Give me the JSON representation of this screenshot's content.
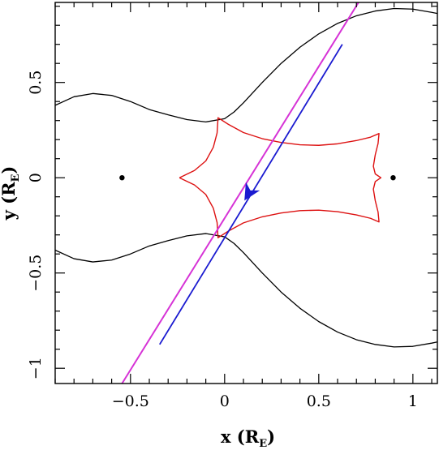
{
  "chart_data": {
    "type": "line",
    "title": "",
    "xlabel": "x (R",
    "xlabel_sub": "E",
    "xlabel_close": ")",
    "ylabel": "y (R",
    "ylabel_sub": "E",
    "ylabel_close": ")",
    "xlim": [
      -0.9,
      1.13
    ],
    "ylim": [
      -1.08,
      0.92
    ],
    "x_ticks": [
      -0.5,
      0,
      0.5,
      1
    ],
    "x_tick_labels": [
      "−0.5",
      "0",
      "0.5",
      "1"
    ],
    "y_ticks": [
      -1,
      -0.5,
      0,
      0.5
    ],
    "y_tick_labels": [
      "−1",
      "−0.5",
      "0",
      "0.5"
    ],
    "grid": false,
    "colors": {
      "critical_curve": "#000000",
      "caustic": "#dd1111",
      "trajectory": "#1a1ad0",
      "trajectory_model": "#d633d6",
      "lens": "#000000"
    },
    "lens_positions": [
      {
        "x": -0.545,
        "y": 0.0
      },
      {
        "x": 0.895,
        "y": 0.0
      }
    ],
    "series": [
      {
        "style": "critical-upper",
        "points": [
          [
            -0.9,
            0.38
          ],
          [
            -0.8,
            0.425
          ],
          [
            -0.7,
            0.442
          ],
          [
            -0.6,
            0.432
          ],
          [
            -0.5,
            0.4
          ],
          [
            -0.4,
            0.358
          ],
          [
            -0.3,
            0.33
          ],
          [
            -0.2,
            0.305
          ],
          [
            -0.1,
            0.293
          ],
          [
            0.0,
            0.31
          ],
          [
            0.05,
            0.345
          ],
          [
            0.1,
            0.393
          ],
          [
            0.2,
            0.5
          ],
          [
            0.3,
            0.6
          ],
          [
            0.4,
            0.685
          ],
          [
            0.5,
            0.755
          ],
          [
            0.6,
            0.81
          ],
          [
            0.7,
            0.85
          ],
          [
            0.8,
            0.875
          ],
          [
            0.9,
            0.888
          ],
          [
            1.0,
            0.885
          ],
          [
            1.1,
            0.868
          ],
          [
            1.13,
            0.862
          ]
        ]
      },
      {
        "style": "critical-lower",
        "points": [
          [
            -0.9,
            -0.38
          ],
          [
            -0.8,
            -0.425
          ],
          [
            -0.7,
            -0.442
          ],
          [
            -0.6,
            -0.432
          ],
          [
            -0.5,
            -0.4
          ],
          [
            -0.4,
            -0.358
          ],
          [
            -0.3,
            -0.33
          ],
          [
            -0.2,
            -0.305
          ],
          [
            -0.1,
            -0.293
          ],
          [
            0.0,
            -0.31
          ],
          [
            0.05,
            -0.345
          ],
          [
            0.1,
            -0.393
          ],
          [
            0.2,
            -0.5
          ],
          [
            0.3,
            -0.6
          ],
          [
            0.4,
            -0.685
          ],
          [
            0.5,
            -0.755
          ],
          [
            0.6,
            -0.81
          ],
          [
            0.7,
            -0.85
          ],
          [
            0.8,
            -0.875
          ],
          [
            0.9,
            -0.888
          ],
          [
            1.0,
            -0.885
          ],
          [
            1.1,
            -0.868
          ],
          [
            1.13,
            -0.862
          ]
        ]
      },
      {
        "style": "caustic",
        "points": [
          [
            -0.24,
            0.0
          ],
          [
            -0.16,
            0.038
          ],
          [
            -0.1,
            0.088
          ],
          [
            -0.06,
            0.16
          ],
          [
            -0.04,
            0.235
          ],
          [
            -0.035,
            0.315
          ],
          [
            0.02,
            0.28
          ],
          [
            0.1,
            0.237
          ],
          [
            0.2,
            0.205
          ],
          [
            0.3,
            0.185
          ],
          [
            0.4,
            0.173
          ],
          [
            0.5,
            0.17
          ],
          [
            0.6,
            0.178
          ],
          [
            0.7,
            0.195
          ],
          [
            0.775,
            0.213
          ],
          [
            0.82,
            0.232
          ],
          [
            0.815,
            0.18
          ],
          [
            0.8,
            0.12
          ],
          [
            0.79,
            0.06
          ],
          [
            0.8,
            0.02
          ],
          [
            0.83,
            0.0
          ],
          [
            0.8,
            -0.02
          ],
          [
            0.79,
            -0.06
          ],
          [
            0.8,
            -0.12
          ],
          [
            0.815,
            -0.18
          ],
          [
            0.82,
            -0.232
          ],
          [
            0.775,
            -0.213
          ],
          [
            0.7,
            -0.195
          ],
          [
            0.6,
            -0.178
          ],
          [
            0.5,
            -0.17
          ],
          [
            0.4,
            -0.173
          ],
          [
            0.3,
            -0.185
          ],
          [
            0.2,
            -0.205
          ],
          [
            0.1,
            -0.237
          ],
          [
            0.02,
            -0.28
          ],
          [
            -0.035,
            -0.315
          ],
          [
            -0.04,
            -0.235
          ],
          [
            -0.06,
            -0.16
          ],
          [
            -0.1,
            -0.088
          ],
          [
            -0.16,
            -0.038
          ],
          [
            -0.24,
            0.0
          ]
        ]
      },
      {
        "style": "trajectory-model",
        "points": [
          [
            -0.545,
            -1.08
          ],
          [
            0.73,
            0.95
          ]
        ]
      },
      {
        "style": "trajectory-observed",
        "points": [
          [
            -0.345,
            -0.875
          ],
          [
            0.625,
            0.7
          ]
        ]
      }
    ],
    "arrow": {
      "x": 0.15,
      "y": -0.045,
      "dx": -0.045,
      "dy": -0.075,
      "color": "#1a1ad0"
    },
    "source_marker": {
      "x": 0.135,
      "y": -0.085
    }
  }
}
